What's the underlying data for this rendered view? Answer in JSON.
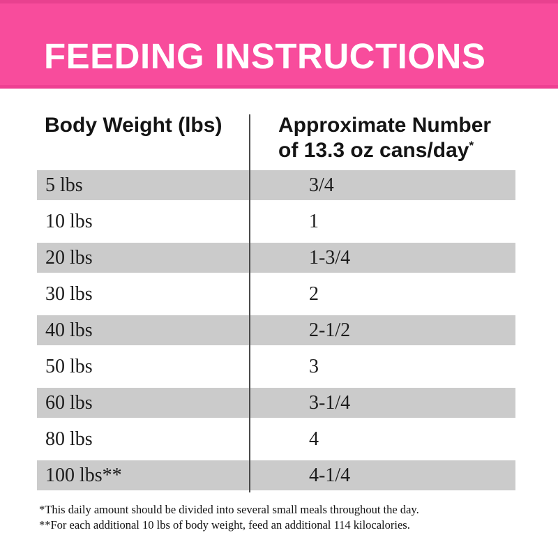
{
  "colors": {
    "banner_pink": "#f84c9c",
    "banner_pink_dark_edge": "#e8418f",
    "shaded_row_gray": "#cbcbcb",
    "divider_gray": "#4a4a4a",
    "text_dark": "#1c1c1c",
    "title_white": "#ffffff"
  },
  "banner": {
    "title": "FEEDING INSTRUCTIONS"
  },
  "table": {
    "col1_header": "Body Weight (lbs)",
    "col2_header_line1": "Approximate Number",
    "col2_header_line2": "of 13.3 oz cans/day",
    "col2_footnote_marker": "*",
    "rows": [
      {
        "weight": "5 lbs",
        "cans": "3/4"
      },
      {
        "weight": "10 lbs",
        "cans": "1"
      },
      {
        "weight": "20 lbs",
        "cans": "1-3/4"
      },
      {
        "weight": "30 lbs",
        "cans": "2"
      },
      {
        "weight": "40 lbs",
        "cans": "2-1/2"
      },
      {
        "weight": "50 lbs",
        "cans": "3"
      },
      {
        "weight": "60 lbs",
        "cans": "3-1/4"
      },
      {
        "weight": "80 lbs",
        "cans": "4"
      },
      {
        "weight": "100 lbs**",
        "cans": "4-1/4"
      }
    ]
  },
  "footnotes": [
    "*This daily amount should be divided into several small meals throughout the day.",
    "**For each additional 10 lbs of body weight, feed an additional 114 kilocalories."
  ]
}
